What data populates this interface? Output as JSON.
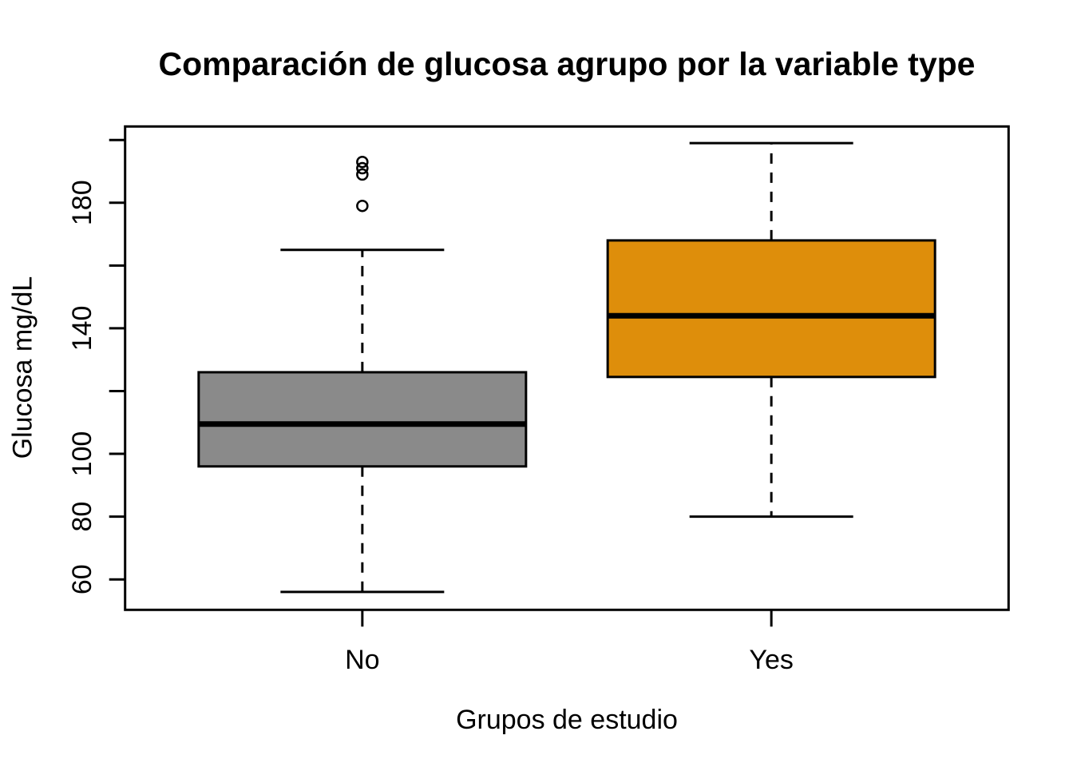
{
  "figure": {
    "background": "#FFFFFF",
    "frame_color": "#000000"
  },
  "chart_data": {
    "type": "boxplot",
    "title": "Comparación de glucosa agrupo por la variable type",
    "xlabel": "Grupos de estudio",
    "ylabel": "Glucosa mg/dL",
    "categories": [
      "No",
      "Yes"
    ],
    "series": [
      {
        "name": "No",
        "whisker_low": 56,
        "q1": 96,
        "median": 109.5,
        "q3": 126,
        "whisker_high": 165,
        "outliers": [
          179,
          189,
          191,
          193
        ],
        "fill": "#8A8A8A"
      },
      {
        "name": "Yes",
        "whisker_low": 80,
        "q1": 124.5,
        "median": 144,
        "q3": 168,
        "whisker_high": 199,
        "outliers": [],
        "fill": "#DE8E0B"
      }
    ],
    "ylim": [
      50.3,
      204.3
    ],
    "y_ticks": [
      60,
      80,
      100,
      120,
      140,
      160,
      180,
      200
    ],
    "y_tick_labels": [
      "60",
      "80",
      "100",
      "140",
      "180"
    ],
    "y_tick_label_values": [
      60,
      80,
      100,
      140,
      180
    ],
    "grid": false,
    "legend": false,
    "whisker_style": "dashed",
    "outlier_marker": "open-circle"
  }
}
